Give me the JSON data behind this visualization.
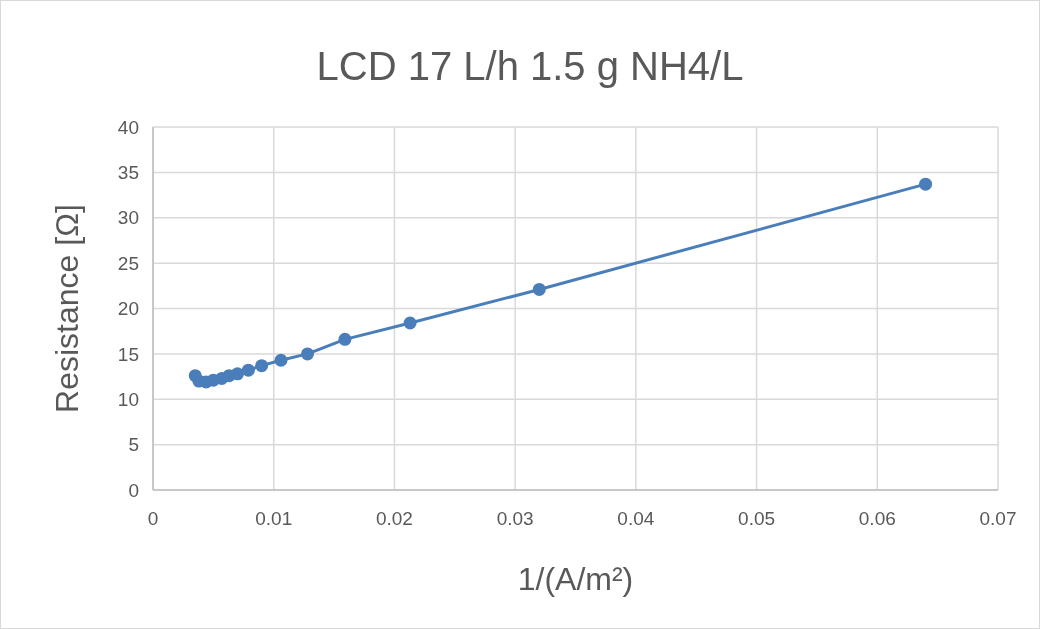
{
  "chart_data": {
    "type": "line",
    "title": "LCD 17 L/h 1.5 g NH4/L",
    "xlabel": "1/(A/m²)",
    "ylabel": "Resistance [Ω]",
    "x": [
      0.0035,
      0.0038,
      0.0044,
      0.005,
      0.0057,
      0.0063,
      0.007,
      0.0079,
      0.009,
      0.0106,
      0.0128,
      0.0159,
      0.0213,
      0.032,
      0.064
    ],
    "series": [
      {
        "color": "#4a7ebb",
        "values": [
          12.6,
          12.0,
          11.9,
          12.1,
          12.3,
          12.6,
          12.8,
          13.2,
          13.7,
          14.3,
          15.0,
          16.6,
          18.4,
          22.1,
          33.7
        ]
      }
    ],
    "line_style": "solid",
    "marker": "circle",
    "xlim": [
      0,
      0.07
    ],
    "xticks": [
      0,
      0.01,
      0.02,
      0.03,
      0.04,
      0.05,
      0.06,
      0.07
    ],
    "ylim": [
      0,
      40
    ],
    "yticks": [
      0,
      5,
      10,
      15,
      20,
      25,
      30,
      35,
      40
    ],
    "grid": true
  }
}
